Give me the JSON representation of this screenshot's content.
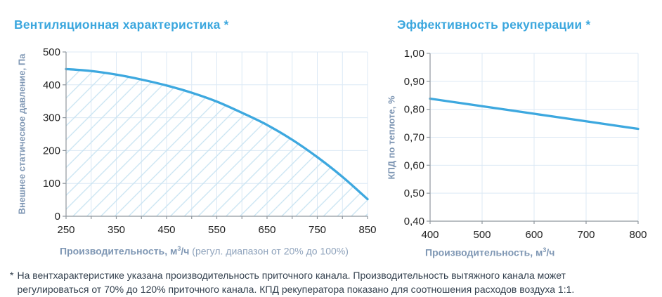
{
  "colors": {
    "accent_blue": "#3DA8DF",
    "title_blue": "#3BA7DE",
    "axis_title_blue": "#7F97B4",
    "axis_title_note": "#8FA3BC",
    "grid": "#DCE9F5",
    "hatch": "#C7E3F2",
    "axis_line": "#8F979E",
    "tick_text": "#1F1F1F",
    "footnote_text": "#33404E"
  },
  "chart_data": [
    {
      "type": "line",
      "title": "Вентиляционная характеристика *",
      "ylabel": "Внешнее статическое давление, Па",
      "xlabel_parts": {
        "bold_prefix": "Производительность, м",
        "sup": "3",
        "bold_suffix": "/ч",
        "note": " (регул. диапазон от 20% до 100%)"
      },
      "xlim": [
        250,
        850
      ],
      "ylim": [
        0,
        500
      ],
      "x_ticks": [
        250,
        350,
        450,
        550,
        650,
        750,
        850
      ],
      "x_tick_labels": [
        "250",
        "350",
        "450",
        "550",
        "650",
        "750",
        "850"
      ],
      "x_minor_tick_step": 50,
      "x_grid_step": 50,
      "y_ticks": [
        0,
        100,
        200,
        300,
        400,
        500
      ],
      "y_tick_labels": [
        "0",
        "100",
        "200",
        "300",
        "400",
        "500"
      ],
      "y_grid_step": 100,
      "grid": true,
      "legend": "none",
      "series": [
        {
          "name": "Внешнее статическое давление",
          "x": [
            250,
            300,
            350,
            400,
            450,
            500,
            550,
            600,
            650,
            700,
            750,
            800,
            850
          ],
          "y": [
            448,
            442,
            431,
            416,
            398,
            376,
            349,
            315,
            278,
            233,
            180,
            120,
            52
          ],
          "hatch_area_below": true
        }
      ]
    },
    {
      "type": "line",
      "title": "Эффективность рекуперации *",
      "ylabel": "КПД по теплоте, %",
      "xlabel_parts": {
        "bold_prefix": "Производительность, м",
        "sup": "3",
        "bold_suffix": "/ч",
        "note": ""
      },
      "xlim": [
        400,
        800
      ],
      "ylim": [
        0.4,
        1.0
      ],
      "x_ticks": [
        400,
        500,
        600,
        700,
        800
      ],
      "x_tick_labels": [
        "400",
        "500",
        "600",
        "700",
        "800"
      ],
      "x_minor_tick_step": 100,
      "x_grid_step": 100,
      "y_ticks": [
        0.4,
        0.5,
        0.6,
        0.7,
        0.8,
        0.9,
        1.0
      ],
      "y_tick_labels": [
        "0,40",
        "0,50",
        "0,60",
        "0,70",
        "0,80",
        "0,90",
        "1,00"
      ],
      "y_grid_step": 0.1,
      "grid": true,
      "legend": "none",
      "series": [
        {
          "name": "КПД по теплоте",
          "x": [
            400,
            500,
            600,
            700,
            800
          ],
          "y": [
            0.838,
            0.811,
            0.784,
            0.757,
            0.73
          ],
          "hatch_area_below": false
        }
      ]
    }
  ],
  "footnote": {
    "marker": "*",
    "text": "На вентхарактеристике указана производительность приточного канала. Производительность вытяжного канала может регулироваться от 70% до 120% приточного канала. КПД рекуператора показано для соотношения расходов воздуха 1:1."
  }
}
